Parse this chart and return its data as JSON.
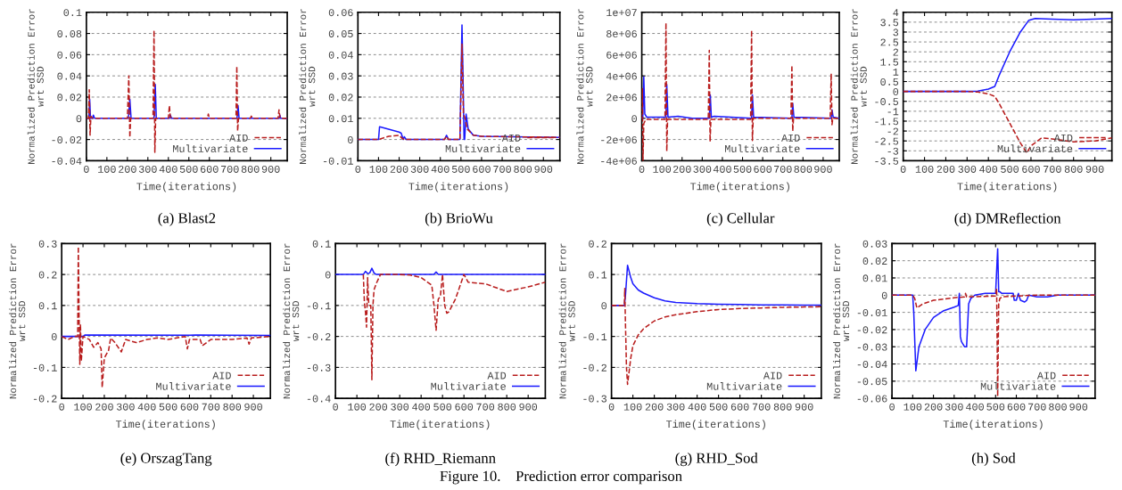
{
  "chart_data": [
    {
      "type": "line",
      "title": "(a) Blast2",
      "xlabel": "Time(iterations)",
      "ylabel": "Normalized Prediction Error\nwrt SSD",
      "xlim": [
        0,
        980
      ],
      "xticks": [
        0,
        100,
        200,
        300,
        400,
        500,
        600,
        700,
        800,
        900
      ],
      "ylim": [
        -0.04,
        0.1
      ],
      "yticks": [
        -0.04,
        -0.02,
        0,
        0.02,
        0.04,
        0.06,
        0.08,
        0.1
      ],
      "grid": "y",
      "legend": "bottom right",
      "annotations": [
        "Figure 10.    Prediction error comparison"
      ],
      "series": [
        {
          "name": "AID",
          "color": "#b81c1c",
          "line_style": "dashed",
          "x": [
            0,
            10,
            14,
            18,
            22,
            30,
            200,
            207,
            212,
            216,
            225,
            325,
            330,
            334,
            338,
            345,
            400,
            405,
            409,
            415,
            590,
            595,
            600,
            730,
            734,
            738,
            742,
            800,
            805,
            810,
            935,
            940,
            945,
            980
          ],
          "values": [
            0,
            0,
            0.027,
            -0.016,
            0.002,
            0,
            0,
            0.04,
            -0.018,
            0,
            0,
            0,
            0.083,
            -0.032,
            0,
            0,
            0,
            0.012,
            0.002,
            0,
            0,
            0.004,
            0,
            0,
            0.049,
            -0.012,
            0,
            0,
            0.002,
            0,
            0,
            0.008,
            0,
            0
          ]
        },
        {
          "name": "Multivariate",
          "color": "#1a1aff",
          "line_style": "solid",
          "x": [
            0,
            12,
            16,
            20,
            30,
            34,
            40,
            205,
            212,
            218,
            330,
            336,
            341,
            405,
            410,
            415,
            735,
            740,
            745,
            940,
            944,
            948,
            980
          ],
          "values": [
            0,
            0,
            0.018,
            0,
            0,
            0.003,
            0,
            0,
            0.018,
            0,
            0,
            0.032,
            0,
            0,
            0.003,
            0,
            0,
            0.012,
            0,
            0,
            0.003,
            0,
            0
          ]
        }
      ]
    },
    {
      "type": "line",
      "title": "(b) BrioWu",
      "xlabel": "Time(iterations)",
      "ylabel": "Normalized Prediction Error\nwrt SSD",
      "xlim": [
        0,
        980
      ],
      "xticks": [
        0,
        100,
        200,
        300,
        400,
        500,
        600,
        700,
        800,
        900
      ],
      "ylim": [
        -0.01,
        0.06
      ],
      "yticks": [
        -0.01,
        0,
        0.01,
        0.02,
        0.03,
        0.04,
        0.05,
        0.06
      ],
      "grid": "y",
      "legend": "bottom right",
      "series": [
        {
          "name": "AID",
          "color": "#b81c1c",
          "line_style": "dashed",
          "x": [
            0,
            100,
            150,
            200,
            215,
            225,
            420,
            430,
            440,
            495,
            505,
            512,
            520,
            530,
            560,
            600,
            980
          ],
          "values": [
            0,
            0,
            0.0015,
            0.002,
            0.0005,
            0,
            0,
            0.0015,
            0,
            0,
            0.045,
            0.012,
            0.01,
            0.005,
            0.002,
            0.0015,
            0.001
          ]
        },
        {
          "name": "Multivariate",
          "color": "#1a1aff",
          "line_style": "solid",
          "x": [
            0,
            100,
            105,
            200,
            210,
            220,
            225,
            235,
            420,
            430,
            440,
            495,
            505,
            510,
            515,
            518,
            525,
            535,
            560,
            600,
            980
          ],
          "values": [
            0,
            0,
            0.006,
            0.0035,
            0.003,
            0,
            0.0013,
            0,
            0,
            0.002,
            0,
            0,
            0.054,
            0.03,
            0,
            0,
            0.012,
            0.005,
            0.002,
            0.0015,
            0.001
          ]
        }
      ]
    },
    {
      "type": "line",
      "title": "(c) Cellular",
      "xlabel": "Time(iterations)",
      "ylabel": "Normalized Prediction Error\nwrt SSD",
      "xlim": [
        0,
        980
      ],
      "xticks": [
        0,
        100,
        200,
        300,
        400,
        500,
        600,
        700,
        800,
        900
      ],
      "ylim": [
        -4000000,
        10000000
      ],
      "yticks": [
        {
          "value": -4000000,
          "label": "-4e+06"
        },
        {
          "value": -2000000,
          "label": "-2e+06"
        },
        0,
        {
          "value": 2000000,
          "label": "2e+06"
        },
        {
          "value": 4000000,
          "label": "4e+06"
        },
        {
          "value": 6000000,
          "label": "6e+06"
        },
        {
          "value": 8000000,
          "label": "8e+06"
        },
        {
          "value": 10000000,
          "label": "1e+07"
        }
      ],
      "grid": "y",
      "legend": "bottom right",
      "series": [
        {
          "name": "AID",
          "color": "#b81c1c",
          "line_style": "dashed",
          "x": [
            0,
            3,
            6,
            10,
            20,
            115,
            120,
            124,
            128,
            330,
            335,
            339,
            343,
            540,
            545,
            549,
            553,
            740,
            745,
            749,
            753,
            935,
            940,
            944,
            948,
            980
          ],
          "values": [
            0,
            2800000,
            -4000000,
            -500000,
            -100000,
            -100000,
            9000000,
            -3100000,
            -100000,
            -100000,
            6400000,
            -2200000,
            -100000,
            -100000,
            8300000,
            -2100000,
            0,
            0,
            5000000,
            -1200000,
            0,
            0,
            4200000,
            -600000,
            0,
            0
          ]
        },
        {
          "name": "Multivariate",
          "color": "#1a1aff",
          "line_style": "solid",
          "x": [
            0,
            5,
            10,
            15,
            25,
            120,
            124,
            130,
            180,
            250,
            335,
            340,
            345,
            360,
            545,
            549,
            555,
            745,
            749,
            755,
            940,
            944,
            950,
            980
          ],
          "values": [
            0,
            0,
            3900000,
            400000,
            100000,
            100000,
            3200000,
            100000,
            200000,
            0,
            0,
            2200000,
            100000,
            200000,
            0,
            2200000,
            100000,
            0,
            1400000,
            100000,
            0,
            800000,
            100000,
            0
          ]
        }
      ]
    },
    {
      "type": "line",
      "title": "(d) DMReflection",
      "xlabel": "Time(iterations)",
      "ylabel": "Normalized Prediction Error\nwrt SSD",
      "xlim": [
        0,
        980
      ],
      "xticks": [
        0,
        100,
        200,
        300,
        400,
        500,
        600,
        700,
        800,
        900
      ],
      "ylim": [
        -3.5,
        4
      ],
      "yticks": [
        -3.5,
        -3,
        -2.5,
        -2,
        -1.5,
        -1,
        -0.5,
        0,
        0.5,
        1,
        1.5,
        2,
        2.5,
        3,
        3.5,
        4
      ],
      "grid": "y",
      "legend": "bottom right",
      "series": [
        {
          "name": "AID",
          "color": "#b81c1c",
          "line_style": "dashed",
          "x": [
            0,
            300,
            350,
            400,
            430,
            450,
            500,
            550,
            580,
            600,
            650,
            700,
            800,
            900,
            980
          ],
          "values": [
            0,
            0,
            -0.03,
            -0.12,
            -0.25,
            -0.6,
            -1.6,
            -2.6,
            -3.1,
            -2.75,
            -2.35,
            -2.4,
            -2.55,
            -2.5,
            -2.35
          ]
        },
        {
          "name": "Multivariate",
          "color": "#1a1aff",
          "line_style": "solid",
          "x": [
            0,
            300,
            350,
            400,
            430,
            450,
            500,
            550,
            590,
            620,
            700,
            800,
            980
          ],
          "values": [
            0,
            0,
            0.02,
            0.12,
            0.25,
            0.8,
            2.0,
            3.0,
            3.6,
            3.68,
            3.65,
            3.62,
            3.68
          ]
        }
      ]
    },
    {
      "type": "line",
      "title": "(e) OrszagTang",
      "xlabel": "Time(iterations)",
      "ylabel": "Normalized Prediction Error\nwrt SSD",
      "xlim": [
        0,
        980
      ],
      "xticks": [
        0,
        100,
        200,
        300,
        400,
        500,
        600,
        700,
        800,
        900
      ],
      "ylim": [
        -0.2,
        0.3
      ],
      "yticks": [
        -0.2,
        -0.1,
        0,
        0.1,
        0.2,
        0.3
      ],
      "grid": "y",
      "legend": "bottom right",
      "series": [
        {
          "name": "AID",
          "color": "#b81c1c",
          "line_style": "dashed",
          "x": [
            0,
            30,
            60,
            75,
            78,
            82,
            85,
            88,
            92,
            100,
            130,
            150,
            170,
            185,
            190,
            200,
            220,
            230,
            250,
            280,
            300,
            350,
            400,
            450,
            500,
            580,
            590,
            600,
            650,
            660,
            700,
            800,
            870,
            880,
            890,
            980
          ],
          "values": [
            0,
            -0.01,
            0,
            0,
            0.29,
            0.04,
            -0.09,
            0.04,
            -0.08,
            0,
            -0.01,
            -0.035,
            -0.02,
            -0.04,
            -0.165,
            -0.07,
            -0.045,
            -0.005,
            -0.02,
            -0.05,
            -0.01,
            -0.02,
            -0.01,
            -0.005,
            -0.01,
            0,
            -0.04,
            -0.01,
            -0.01,
            -0.03,
            -0.01,
            -0.01,
            -0.005,
            -0.025,
            -0.005,
            0
          ]
        },
        {
          "name": "Multivariate",
          "color": "#1a1aff",
          "line_style": "solid",
          "x": [
            0,
            100,
            110,
            600,
            630,
            980
          ],
          "values": [
            0,
            0,
            0.005,
            0.004,
            0.005,
            0.003
          ]
        }
      ]
    },
    {
      "type": "line",
      "title": "(f) RHD_Riemann",
      "xlabel": "Time(iterations)",
      "ylabel": "Normalized Prediction Error\nwrt SSD",
      "xlim": [
        0,
        980
      ],
      "xticks": [
        0,
        100,
        200,
        300,
        400,
        500,
        600,
        700,
        800,
        900
      ],
      "ylim": [
        -0.4,
        0.1
      ],
      "yticks": [
        -0.4,
        -0.3,
        -0.2,
        -0.1,
        0,
        0.1
      ],
      "grid": "y",
      "legend": "bottom right",
      "series": [
        {
          "name": "AID",
          "color": "#b81c1c",
          "line_style": "dashed",
          "x": [
            130,
            135,
            140,
            145,
            150,
            155,
            160,
            165,
            170,
            175,
            180,
            190,
            210,
            300,
            350,
            400,
            450,
            460,
            470,
            480,
            490,
            500,
            510,
            520,
            530,
            560,
            600,
            620,
            700,
            800,
            900,
            980
          ],
          "values": [
            0,
            -0.09,
            -0.12,
            -0.17,
            -0.01,
            -0.09,
            -0.1,
            -0.1,
            -0.34,
            -0.1,
            -0.05,
            -0.03,
            0,
            0,
            -0.002,
            -0.01,
            -0.035,
            -0.1,
            -0.18,
            -0.08,
            -0.07,
            0,
            -0.1,
            -0.125,
            -0.12,
            -0.08,
            0,
            -0.025,
            -0.03,
            -0.055,
            -0.04,
            -0.025
          ]
        },
        {
          "name": "Multivariate",
          "color": "#1a1aff",
          "line_style": "solid",
          "x": [
            0,
            130,
            140,
            150,
            160,
            170,
            180,
            190,
            460,
            470,
            480,
            980
          ],
          "values": [
            0,
            0,
            0.01,
            0.003,
            0.005,
            0.02,
            0.005,
            0,
            0,
            0.008,
            0,
            0
          ]
        }
      ]
    },
    {
      "type": "line",
      "title": "(g) RHD_Sod",
      "xlabel": "Time(iterations)",
      "ylabel": "Normalized Prediction Error\nwrt SSD",
      "xlim": [
        0,
        980
      ],
      "xticks": [
        0,
        100,
        200,
        300,
        400,
        500,
        600,
        700,
        800,
        900
      ],
      "ylim": [
        -0.3,
        0.2
      ],
      "yticks": [
        -0.3,
        -0.2,
        -0.1,
        0,
        0.1,
        0.2
      ],
      "grid": "y",
      "legend": "bottom right",
      "series": [
        {
          "name": "AID",
          "color": "#b81c1c",
          "line_style": "dashed",
          "x": [
            0,
            60,
            62,
            65,
            70,
            75,
            90,
            100,
            125,
            150,
            200,
            250,
            300,
            400,
            500,
            600,
            700,
            800,
            900,
            980
          ],
          "values": [
            0,
            0,
            0.055,
            -0.05,
            -0.2,
            -0.255,
            -0.17,
            -0.13,
            -0.095,
            -0.075,
            -0.05,
            -0.037,
            -0.03,
            -0.02,
            -0.013,
            -0.01,
            -0.008,
            -0.006,
            -0.005,
            -0.004
          ]
        },
        {
          "name": "Multivariate",
          "color": "#1a1aff",
          "line_style": "solid",
          "x": [
            0,
            60,
            65,
            75,
            90,
            100,
            125,
            150,
            200,
            250,
            300,
            400,
            500,
            600,
            700,
            800,
            900,
            980
          ],
          "values": [
            0,
            0,
            0.03,
            0.13,
            0.09,
            0.07,
            0.05,
            0.04,
            0.025,
            0.015,
            0.01,
            0.006,
            0.004,
            0.003,
            0.002,
            0.002,
            0.001,
            0.001
          ]
        }
      ]
    },
    {
      "type": "line",
      "title": "(h) Sod",
      "xlabel": "Time(iterations)",
      "ylabel": "Normalized Prediction Error\nwrt SSD",
      "xlim": [
        0,
        980
      ],
      "xticks": [
        0,
        100,
        200,
        300,
        400,
        500,
        600,
        700,
        800,
        900
      ],
      "ylim": [
        -0.06,
        0.03
      ],
      "yticks": [
        -0.06,
        -0.05,
        -0.04,
        -0.03,
        -0.02,
        -0.01,
        0,
        0.01,
        0.02,
        0.03
      ],
      "grid": "y",
      "legend": "bottom right",
      "series": [
        {
          "name": "AID",
          "color": "#b81c1c",
          "line_style": "dashed",
          "x": [
            0,
            100,
            110,
            120,
            150,
            200,
            300,
            350,
            355,
            360,
            500,
            505,
            510,
            515,
            520,
            530,
            600,
            700,
            980
          ],
          "values": [
            0,
            0,
            -0.002,
            -0.0075,
            -0.005,
            -0.003,
            -0.0015,
            -0.001,
            0.001,
            -0.001,
            -0.0005,
            0.004,
            -0.059,
            -0.005,
            -0.002,
            -0.001,
            -0.0005,
            0,
            0
          ]
        },
        {
          "name": "Multivariate",
          "color": "#1a1aff",
          "line_style": "solid",
          "x": [
            0,
            100,
            105,
            115,
            130,
            160,
            200,
            250,
            300,
            320,
            325,
            330,
            335,
            350,
            360,
            370,
            380,
            400,
            450,
            500,
            510,
            515,
            520,
            530,
            580,
            585,
            590,
            600,
            610,
            620,
            640,
            650,
            660,
            700,
            750,
            800,
            980
          ],
          "values": [
            0,
            0,
            -0.01,
            -0.044,
            -0.03,
            -0.02,
            -0.013,
            -0.009,
            -0.007,
            -0.006,
            0.001,
            -0.024,
            -0.027,
            -0.03,
            -0.03,
            -0.005,
            -0.002,
            0,
            0.001,
            0.001,
            0.027,
            0.002,
            0.002,
            0.001,
            0.001,
            0.001,
            -0.003,
            -0.003,
            0.001,
            -0.003,
            -0.004,
            -0.003,
            0,
            -0.001,
            -0.001,
            0,
            0
          ]
        }
      ]
    }
  ]
}
